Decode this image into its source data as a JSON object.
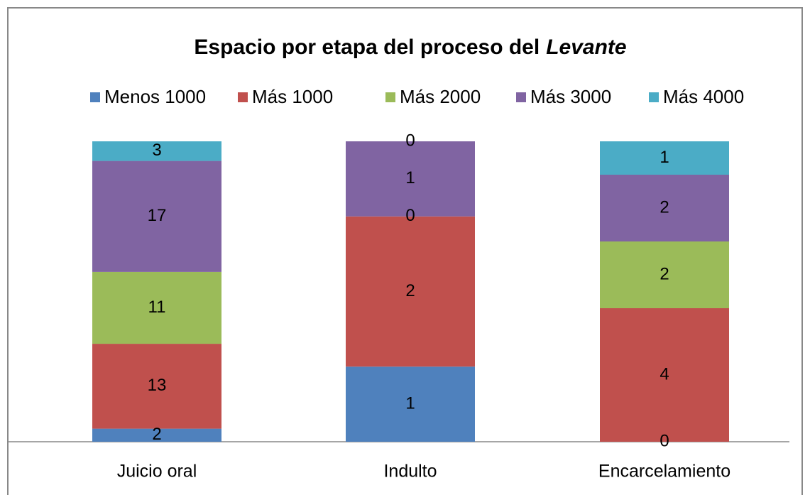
{
  "chart_data": {
    "type": "bar",
    "stacked": "percent",
    "title_parts": [
      "Espacio por etapa del proceso del",
      "Levante"
    ],
    "categories": [
      "Juicio oral",
      "Indulto",
      "Encarcelamiento"
    ],
    "series": [
      {
        "name": "Menos 1000",
        "color": "#4f81bd",
        "values": [
          2,
          1,
          0
        ]
      },
      {
        "name": "Más 1000",
        "color": "#c0504d",
        "values": [
          13,
          2,
          4
        ]
      },
      {
        "name": "Más 2000",
        "color": "#9bbb59",
        "values": [
          11,
          0,
          2
        ]
      },
      {
        "name": "Más 3000",
        "color": "#8064a2",
        "values": [
          17,
          1,
          2
        ]
      },
      {
        "name": "Más 4000",
        "color": "#4bacc6",
        "values": [
          3,
          0,
          1
        ]
      }
    ],
    "legend": "top"
  }
}
